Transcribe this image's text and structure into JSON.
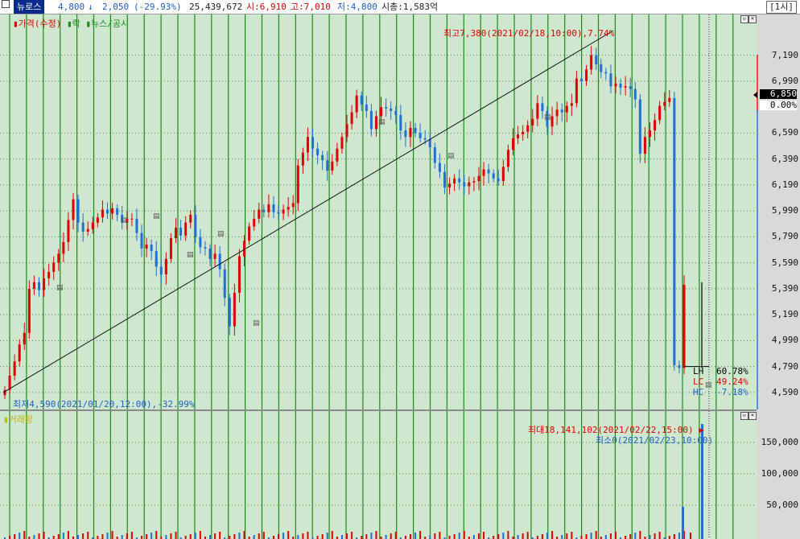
{
  "header": {
    "stock_name": "뉴로스",
    "price": "4,800",
    "change_arrow": "↓",
    "change": "2,050",
    "change_pct": "(-29.93%)",
    "volume": "25,439,672",
    "open": "시:6,910",
    "high": "고:7,010",
    "low": "저:4,800",
    "mktcap": "시총:1,583억",
    "timeframe": "[1시]",
    "close_icon": "close-icon"
  },
  "price_pane": {
    "legend_price": "가격(수정)",
    "legend_rak": "락",
    "legend_news": "뉴스/공시",
    "high_annotation": "최고7,380(2021/02/18,10:00),7.74%",
    "low_annotation": "최저4,590(2021/01/20,12:00),-32.99%",
    "lh_label": "LH",
    "lh_value": "60.78%",
    "lc_label": "LC",
    "lc_value": "49.24%",
    "hc_label": "HC",
    "hc_value": "-7.18%",
    "axis_labels": [
      "7,190",
      "6,990",
      "6,590",
      "6,390",
      "6,190",
      "5,990",
      "5,790",
      "5,590",
      "5,390",
      "5,190",
      "4,990",
      "4,790",
      "4,590"
    ],
    "current_marker": "6,850",
    "current_pct": "0.00%"
  },
  "volume_pane": {
    "legend": "거래량",
    "max_annotation": "최대18,141,102(2021/02/22,15:00)",
    "min_annotation": "최소0(2021/02/23,10:00)",
    "axis_labels": [
      "150,000",
      "100,000",
      "50,000"
    ]
  },
  "colors": {
    "pane_bg": "#cfe6cf",
    "up": "#e00000",
    "down": "#1f6fd6",
    "grid_vertical": "#1a8c1a"
  },
  "chart_data": {
    "type": "candlestick",
    "ylim": [
      4540,
      7380
    ],
    "x_dividers": 44,
    "price_series_hint": [
      4610,
      4720,
      4830,
      4960,
      5050,
      5390,
      5440,
      5380,
      5470,
      5520,
      5590,
      5660,
      5750,
      5920,
      6080,
      5900,
      5830,
      5850,
      5900,
      5940,
      6000,
      5970,
      6010,
      5960,
      5900,
      5930,
      5930,
      5820,
      5700,
      5730,
      5680,
      5560,
      5500,
      5620,
      5780,
      5860,
      5800,
      5900,
      5960,
      5790,
      5710,
      5700,
      5620,
      5660,
      5540,
      5320,
      5100,
      5360,
      5640,
      5760,
      5870,
      5930,
      6000,
      5980,
      6040,
      5980,
      5970,
      6000,
      6020,
      6050,
      6340,
      6440,
      6560,
      6470,
      6420,
      6380,
      6300,
      6370,
      6470,
      6560,
      6660,
      6750,
      6880,
      6810,
      6760,
      6620,
      6720,
      6790,
      6780,
      6760,
      6730,
      6610,
      6560,
      6630,
      6590,
      6550,
      6540,
      6480,
      6360,
      6290,
      6170,
      6200,
      6240,
      6210,
      6180,
      6210,
      6220,
      6260,
      6310,
      6280,
      6240,
      6220,
      6330,
      6460,
      6550,
      6580,
      6600,
      6650,
      6700,
      6820,
      6760,
      6640,
      6720,
      6770,
      6750,
      6800,
      6820,
      7010,
      6990,
      7080,
      7190,
      7120,
      7060,
      7050,
      6950,
      6970,
      6940,
      6950,
      6930,
      6850,
      6430,
      6560,
      6610,
      6690,
      6800,
      6830,
      6860,
      4800,
      4780,
      5420
    ],
    "volume_max": 18141102,
    "volume_min": 0
  }
}
